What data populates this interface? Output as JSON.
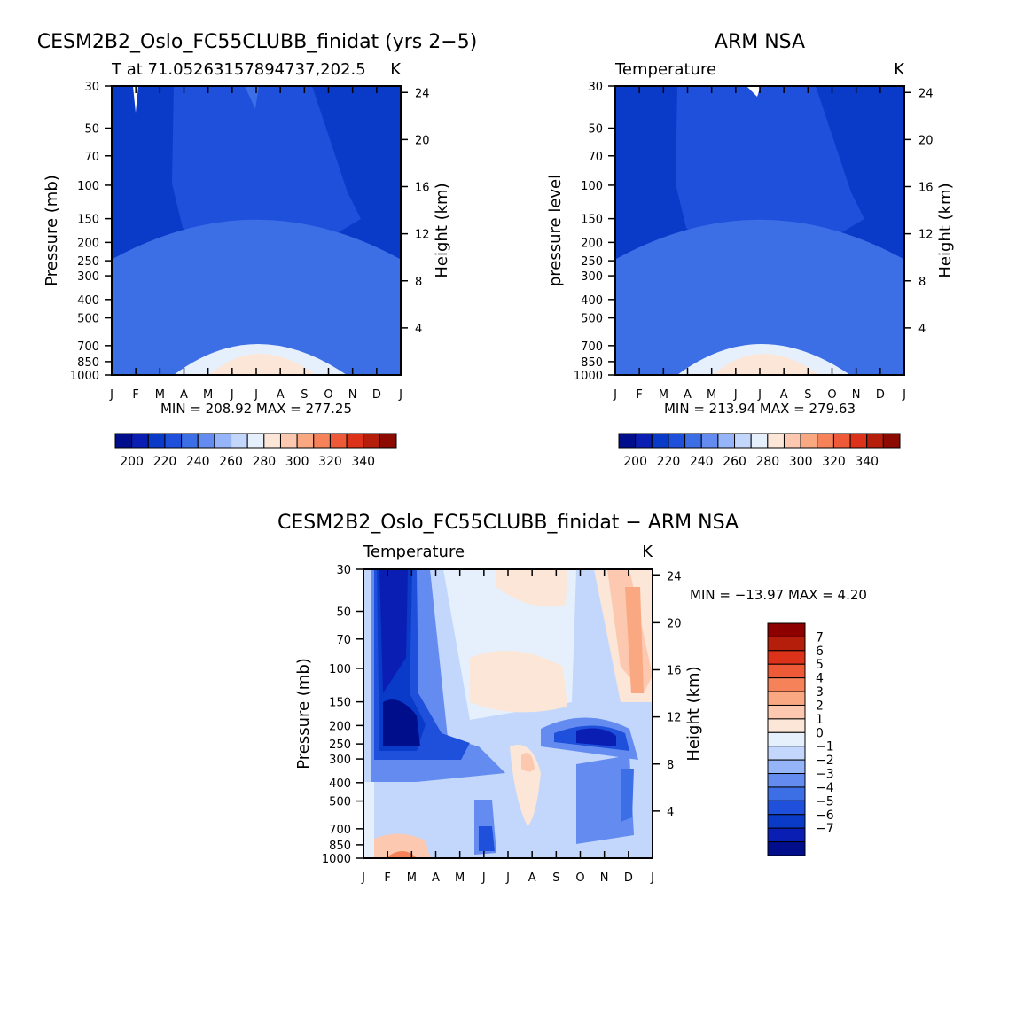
{
  "chart_data": [
    {
      "type": "heatmap",
      "title": "CESM2B2_Oslo_FC55CLUBB_finidat (yrs 2−5)",
      "left_label": "T at 71.05263157894737,202.5",
      "right_label": "K",
      "ylabel": "Pressure (mb)",
      "ylabel_right": "Height (km)",
      "x": [
        "J",
        "F",
        "M",
        "A",
        "M",
        "J",
        "J",
        "A",
        "S",
        "O",
        "N",
        "D",
        "J"
      ],
      "pressure_ticks": [
        30,
        50,
        70,
        100,
        150,
        200,
        250,
        300,
        400,
        500,
        700,
        850,
        1000
      ],
      "height_ticks": [
        4,
        8,
        12,
        16,
        20,
        24
      ],
      "stats": "MIN = 208.92 MAX = 277.25",
      "colorbar": {
        "levels": [
          200,
          220,
          240,
          260,
          280,
          300,
          320,
          340
        ]
      }
    },
    {
      "type": "heatmap",
      "title": "ARM NSA",
      "left_label": "Temperature",
      "right_label": "K",
      "ylabel": "pressure level",
      "ylabel_right": "Height (km)",
      "x": [
        "J",
        "F",
        "M",
        "A",
        "M",
        "J",
        "J",
        "A",
        "S",
        "O",
        "N",
        "D",
        "J"
      ],
      "pressure_ticks": [
        30,
        50,
        70,
        100,
        150,
        200,
        250,
        300,
        400,
        500,
        700,
        850,
        1000
      ],
      "height_ticks": [
        4,
        8,
        12,
        16,
        20,
        24
      ],
      "stats": "MIN = 213.94 MAX = 279.63",
      "colorbar": {
        "levels": [
          200,
          220,
          240,
          260,
          280,
          300,
          320,
          340
        ]
      }
    },
    {
      "type": "heatmap",
      "title": "CESM2B2_Oslo_FC55CLUBB_finidat − ARM NSA",
      "left_label": "Temperature",
      "right_label": "K",
      "ylabel": "Pressure (mb)",
      "ylabel_right": "Height (km)",
      "x": [
        "J",
        "F",
        "M",
        "A",
        "M",
        "J",
        "J",
        "A",
        "S",
        "O",
        "N",
        "D",
        "J"
      ],
      "pressure_ticks": [
        30,
        50,
        70,
        100,
        150,
        200,
        250,
        300,
        400,
        500,
        700,
        850,
        1000
      ],
      "height_ticks": [
        4,
        8,
        12,
        16,
        20,
        24
      ],
      "stats": "MIN = −13.97 MAX =    4.20",
      "colorbar": {
        "levels": [
          "7",
          "6",
          "5",
          "4",
          "3",
          "2",
          "1",
          "0",
          "−1",
          "−2",
          "−3",
          "−4",
          "−5",
          "−6",
          "−7"
        ]
      }
    }
  ],
  "colors": {
    "abs_palette": [
      "#000e8c",
      "#0a1eb4",
      "#0a3ac8",
      "#1e50dc",
      "#3c6ee6",
      "#648cf0",
      "#96b4f8",
      "#c3d7fc",
      "#e6f0fc",
      "#fce6d7",
      "#fcc8af",
      "#faa882",
      "#f6825a",
      "#ee5a37",
      "#dc3219",
      "#b41e0a",
      "#8c0a00"
    ],
    "diff_palette": [
      "#8c0000",
      "#b41e0a",
      "#dc3219",
      "#ee5a37",
      "#f6825a",
      "#faa882",
      "#fcc8af",
      "#fce6d7",
      "#e6f0fc",
      "#c3d7fc",
      "#96b4f8",
      "#648cf0",
      "#3c6ee6",
      "#1e50dc",
      "#0a3ac8",
      "#0a1eb4",
      "#000e8c"
    ]
  }
}
